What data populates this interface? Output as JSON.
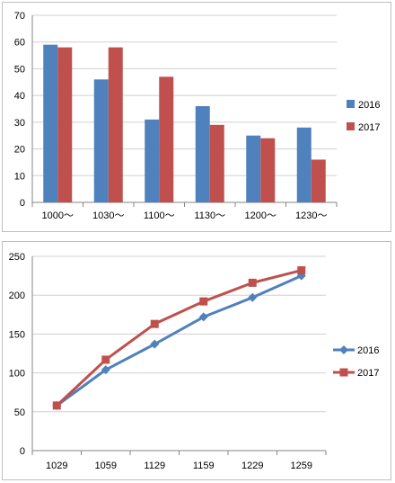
{
  "chart_data": [
    {
      "type": "bar",
      "categories": [
        "1000〜",
        "1030〜",
        "1100〜",
        "1130〜",
        "1200〜",
        "1230〜"
      ],
      "series": [
        {
          "name": "2016",
          "values": [
            59,
            46,
            31,
            36,
            25,
            28
          ]
        },
        {
          "name": "2017",
          "values": [
            58,
            58,
            47,
            29,
            24,
            16
          ]
        }
      ],
      "ylim": [
        0,
        70
      ],
      "yticks": [
        0,
        10,
        20,
        30,
        40,
        50,
        60,
        70
      ],
      "grid": true,
      "legend": "right",
      "colors": [
        "#4F81BD",
        "#C0504D"
      ]
    },
    {
      "type": "line",
      "categories": [
        "1029",
        "1059",
        "1129",
        "1159",
        "1229",
        "1259"
      ],
      "series": [
        {
          "name": "2016",
          "values": [
            58,
            104,
            137,
            172,
            197,
            225
          ]
        },
        {
          "name": "2017",
          "values": [
            58,
            117,
            163,
            192,
            216,
            232
          ]
        }
      ],
      "ylim": [
        0,
        250
      ],
      "yticks": [
        0,
        50,
        100,
        150,
        200,
        250
      ],
      "grid": true,
      "legend": "right",
      "markers": [
        "diamond",
        "square"
      ],
      "colors": [
        "#4F81BD",
        "#C0504D"
      ]
    }
  ]
}
